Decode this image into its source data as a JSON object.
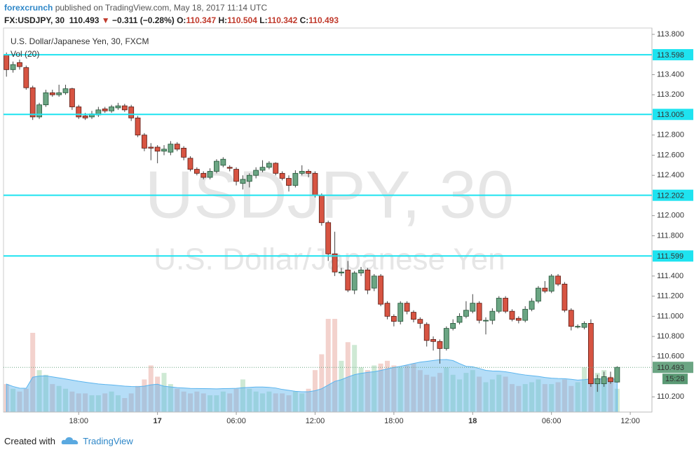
{
  "header": {
    "author": "forexcrunch",
    "published": "published on TradingView.com, May 18, 2017 11:14 UTC",
    "symbol": "FX:USDJPY, 30",
    "last": "110.493",
    "arrow": "▼",
    "change": "−0.311 (−0.28%)",
    "o_label": "O:",
    "o": "110.347",
    "h_label": "H:",
    "h": "110.504",
    "l_label": "L:",
    "l": "110.342",
    "c_label": "C:",
    "c": "110.493"
  },
  "footer": {
    "created": "Created with",
    "brand": "TradingView"
  },
  "chart_data": {
    "type": "candlestick",
    "title": "U.S. Dollar/Japanese Yen, 30, FXCM",
    "indicator": "Vol (20)",
    "watermark": [
      "USDJPY, 30",
      "U.S. Dollar/Japanese Yen"
    ],
    "up_color": "#6ba583",
    "down_color": "#d75442",
    "hline_color": "#1ee3f0",
    "xlim": [
      -0.45,
      98.3
    ],
    "xticks": [
      {
        "value": 11,
        "label": "18:00"
      },
      {
        "value": 23,
        "label": "17"
      },
      {
        "value": 35,
        "label": "06:00"
      },
      {
        "value": 47,
        "label": "12:00"
      },
      {
        "value": 59,
        "label": "18:00"
      },
      {
        "value": 71,
        "label": "18"
      },
      {
        "value": 83,
        "label": "06:00"
      },
      {
        "value": 95,
        "label": "12:00"
      }
    ],
    "ylim": [
      110.049,
      113.863
    ],
    "yticks": [
      {
        "value": 113.8,
        "label": "113.800"
      },
      {
        "value": 113.4,
        "label": "113.400"
      },
      {
        "value": 113.2,
        "label": "113.200"
      },
      {
        "value": 112.8,
        "label": "112.800"
      },
      {
        "value": 112.6,
        "label": "112.600"
      },
      {
        "value": 112.4,
        "label": "112.400"
      },
      {
        "value": 112.0,
        "label": "112.000"
      },
      {
        "value": 111.8,
        "label": "111.800"
      },
      {
        "value": 111.4,
        "label": "111.400"
      },
      {
        "value": 111.2,
        "label": "111.200"
      },
      {
        "value": 111.0,
        "label": "111.000"
      },
      {
        "value": 110.8,
        "label": "110.800"
      },
      {
        "value": 110.6,
        "label": "110.600"
      },
      {
        "value": 110.2,
        "label": "110.200"
      }
    ],
    "hlines": [
      113.598,
      113.005,
      112.202,
      111.599
    ],
    "last_price": 110.493,
    "countdown": "15:28",
    "open": [
      113.6,
      113.45,
      113.52,
      113.47,
      113.27,
      112.98,
      113.1,
      113.22,
      113.2,
      113.22,
      113.26,
      113.08,
      112.99,
      112.98,
      113.0,
      113.06,
      113.04,
      113.07,
      113.09,
      113.08,
      112.97,
      112.8,
      112.68,
      112.68,
      112.64,
      112.63,
      112.71,
      112.67,
      112.57,
      112.46,
      112.42,
      112.38,
      112.44,
      112.5,
      112.48,
      112.46,
      112.32,
      112.34,
      112.4,
      112.45,
      112.48,
      112.52,
      112.42,
      112.37,
      112.3,
      112.42,
      112.44,
      112.42,
      112.2,
      111.93,
      111.62,
      111.43,
      111.46,
      111.26,
      111.43,
      111.46,
      111.28,
      111.4,
      111.13,
      111.0,
      110.95,
      111.13,
      111.04,
      110.97,
      110.92,
      110.77,
      110.75,
      110.68,
      110.88,
      110.94,
      111.0,
      111.05,
      111.13,
      110.96,
      110.96,
      111.05,
      111.18,
      111.05,
      110.98,
      110.96,
      111.07,
      111.15,
      111.28,
      111.25,
      111.4,
      111.32,
      111.06,
      110.9,
      110.89,
      110.93,
      110.33,
      110.33,
      110.39,
      110.347
    ],
    "high": [
      113.62,
      113.53,
      113.55,
      113.49,
      113.29,
      113.12,
      113.25,
      113.25,
      113.3,
      113.3,
      113.27,
      113.1,
      113.02,
      113.04,
      113.08,
      113.08,
      113.1,
      113.12,
      113.11,
      113.1,
      112.99,
      112.82,
      112.72,
      112.7,
      112.7,
      112.74,
      112.73,
      112.69,
      112.59,
      112.48,
      112.44,
      112.47,
      112.56,
      112.58,
      112.5,
      112.48,
      112.4,
      112.42,
      112.48,
      112.55,
      112.54,
      112.53,
      112.44,
      112.4,
      112.45,
      112.5,
      112.46,
      112.44,
      112.22,
      111.95,
      111.84,
      111.48,
      111.55,
      111.45,
      111.49,
      111.48,
      111.42,
      111.42,
      111.15,
      111.02,
      111.15,
      111.15,
      111.06,
      110.99,
      110.94,
      110.8,
      110.77,
      110.9,
      110.97,
      111.03,
      111.15,
      111.22,
      111.15,
      110.99,
      111.08,
      111.2,
      111.2,
      111.07,
      111.0,
      111.1,
      111.18,
      111.3,
      111.35,
      111.42,
      111.42,
      111.34,
      111.08,
      110.92,
      110.95,
      110.97,
      110.42,
      110.45,
      110.45,
      110.504
    ],
    "low": [
      113.38,
      113.42,
      113.45,
      113.25,
      112.95,
      112.96,
      113.08,
      113.18,
      113.18,
      113.2,
      113.05,
      112.96,
      112.95,
      112.96,
      112.98,
      113.02,
      113.02,
      113.05,
      113.03,
      112.94,
      112.78,
      112.64,
      112.55,
      112.52,
      112.6,
      112.6,
      112.64,
      112.55,
      112.44,
      112.4,
      112.36,
      112.36,
      112.42,
      112.48,
      112.44,
      112.3,
      112.26,
      112.28,
      112.37,
      112.43,
      112.46,
      112.4,
      112.35,
      112.24,
      112.28,
      112.4,
      112.38,
      112.18,
      111.9,
      111.55,
      111.4,
      111.4,
      111.24,
      111.22,
      111.4,
      111.22,
      111.25,
      111.1,
      110.97,
      110.9,
      110.92,
      111.02,
      110.94,
      110.88,
      110.7,
      110.66,
      110.53,
      110.66,
      110.86,
      110.92,
      110.98,
      111.03,
      110.93,
      110.82,
      110.92,
      111.03,
      111.03,
      110.95,
      110.93,
      110.94,
      111.05,
      111.13,
      111.23,
      111.23,
      111.3,
      111.04,
      110.86,
      110.88,
      110.87,
      110.3,
      110.25,
      110.3,
      110.33,
      110.342
    ],
    "close": [
      113.45,
      113.5,
      113.48,
      113.27,
      112.98,
      113.1,
      113.22,
      113.2,
      113.22,
      113.26,
      113.08,
      112.98,
      112.97,
      113.01,
      113.05,
      113.04,
      113.08,
      113.09,
      113.05,
      112.97,
      112.8,
      112.67,
      112.67,
      112.64,
      112.66,
      112.71,
      112.66,
      112.58,
      112.46,
      112.42,
      112.38,
      112.44,
      112.54,
      112.56,
      112.47,
      112.34,
      112.36,
      112.4,
      112.45,
      112.48,
      112.52,
      112.42,
      112.37,
      112.3,
      112.42,
      112.44,
      112.42,
      112.2,
      111.93,
      111.62,
      111.44,
      111.44,
      111.26,
      111.43,
      111.46,
      111.26,
      111.4,
      111.12,
      111.0,
      110.95,
      111.13,
      111.05,
      110.97,
      110.93,
      110.76,
      110.75,
      110.68,
      110.88,
      110.93,
      111.0,
      111.06,
      111.13,
      110.96,
      110.96,
      111.05,
      111.18,
      111.05,
      110.97,
      110.96,
      111.07,
      111.15,
      111.28,
      111.25,
      111.4,
      111.32,
      111.06,
      110.9,
      110.9,
      110.93,
      110.33,
      110.38,
      110.4,
      110.35,
      110.493
    ],
    "volume": [
      30,
      25,
      22,
      25,
      85,
      45,
      40,
      30,
      28,
      25,
      22,
      20,
      20,
      18,
      18,
      20,
      22,
      18,
      15,
      20,
      28,
      35,
      50,
      38,
      42,
      30,
      25,
      22,
      20,
      22,
      20,
      18,
      18,
      22,
      20,
      25,
      35,
      25,
      22,
      20,
      22,
      20,
      20,
      18,
      22,
      20,
      25,
      45,
      62,
      100,
      100,
      55,
      75,
      72,
      48,
      45,
      50,
      52,
      55,
      50,
      48,
      50,
      52,
      45,
      40,
      38,
      42,
      48,
      40,
      35,
      42,
      45,
      38,
      32,
      35,
      40,
      38,
      30,
      28,
      30,
      32,
      35,
      30,
      30,
      32,
      35,
      28,
      32,
      48,
      52,
      42,
      45,
      38,
      25
    ],
    "volume_ylim": [
      0,
      100
    ],
    "volume_ma_period": 20
  }
}
